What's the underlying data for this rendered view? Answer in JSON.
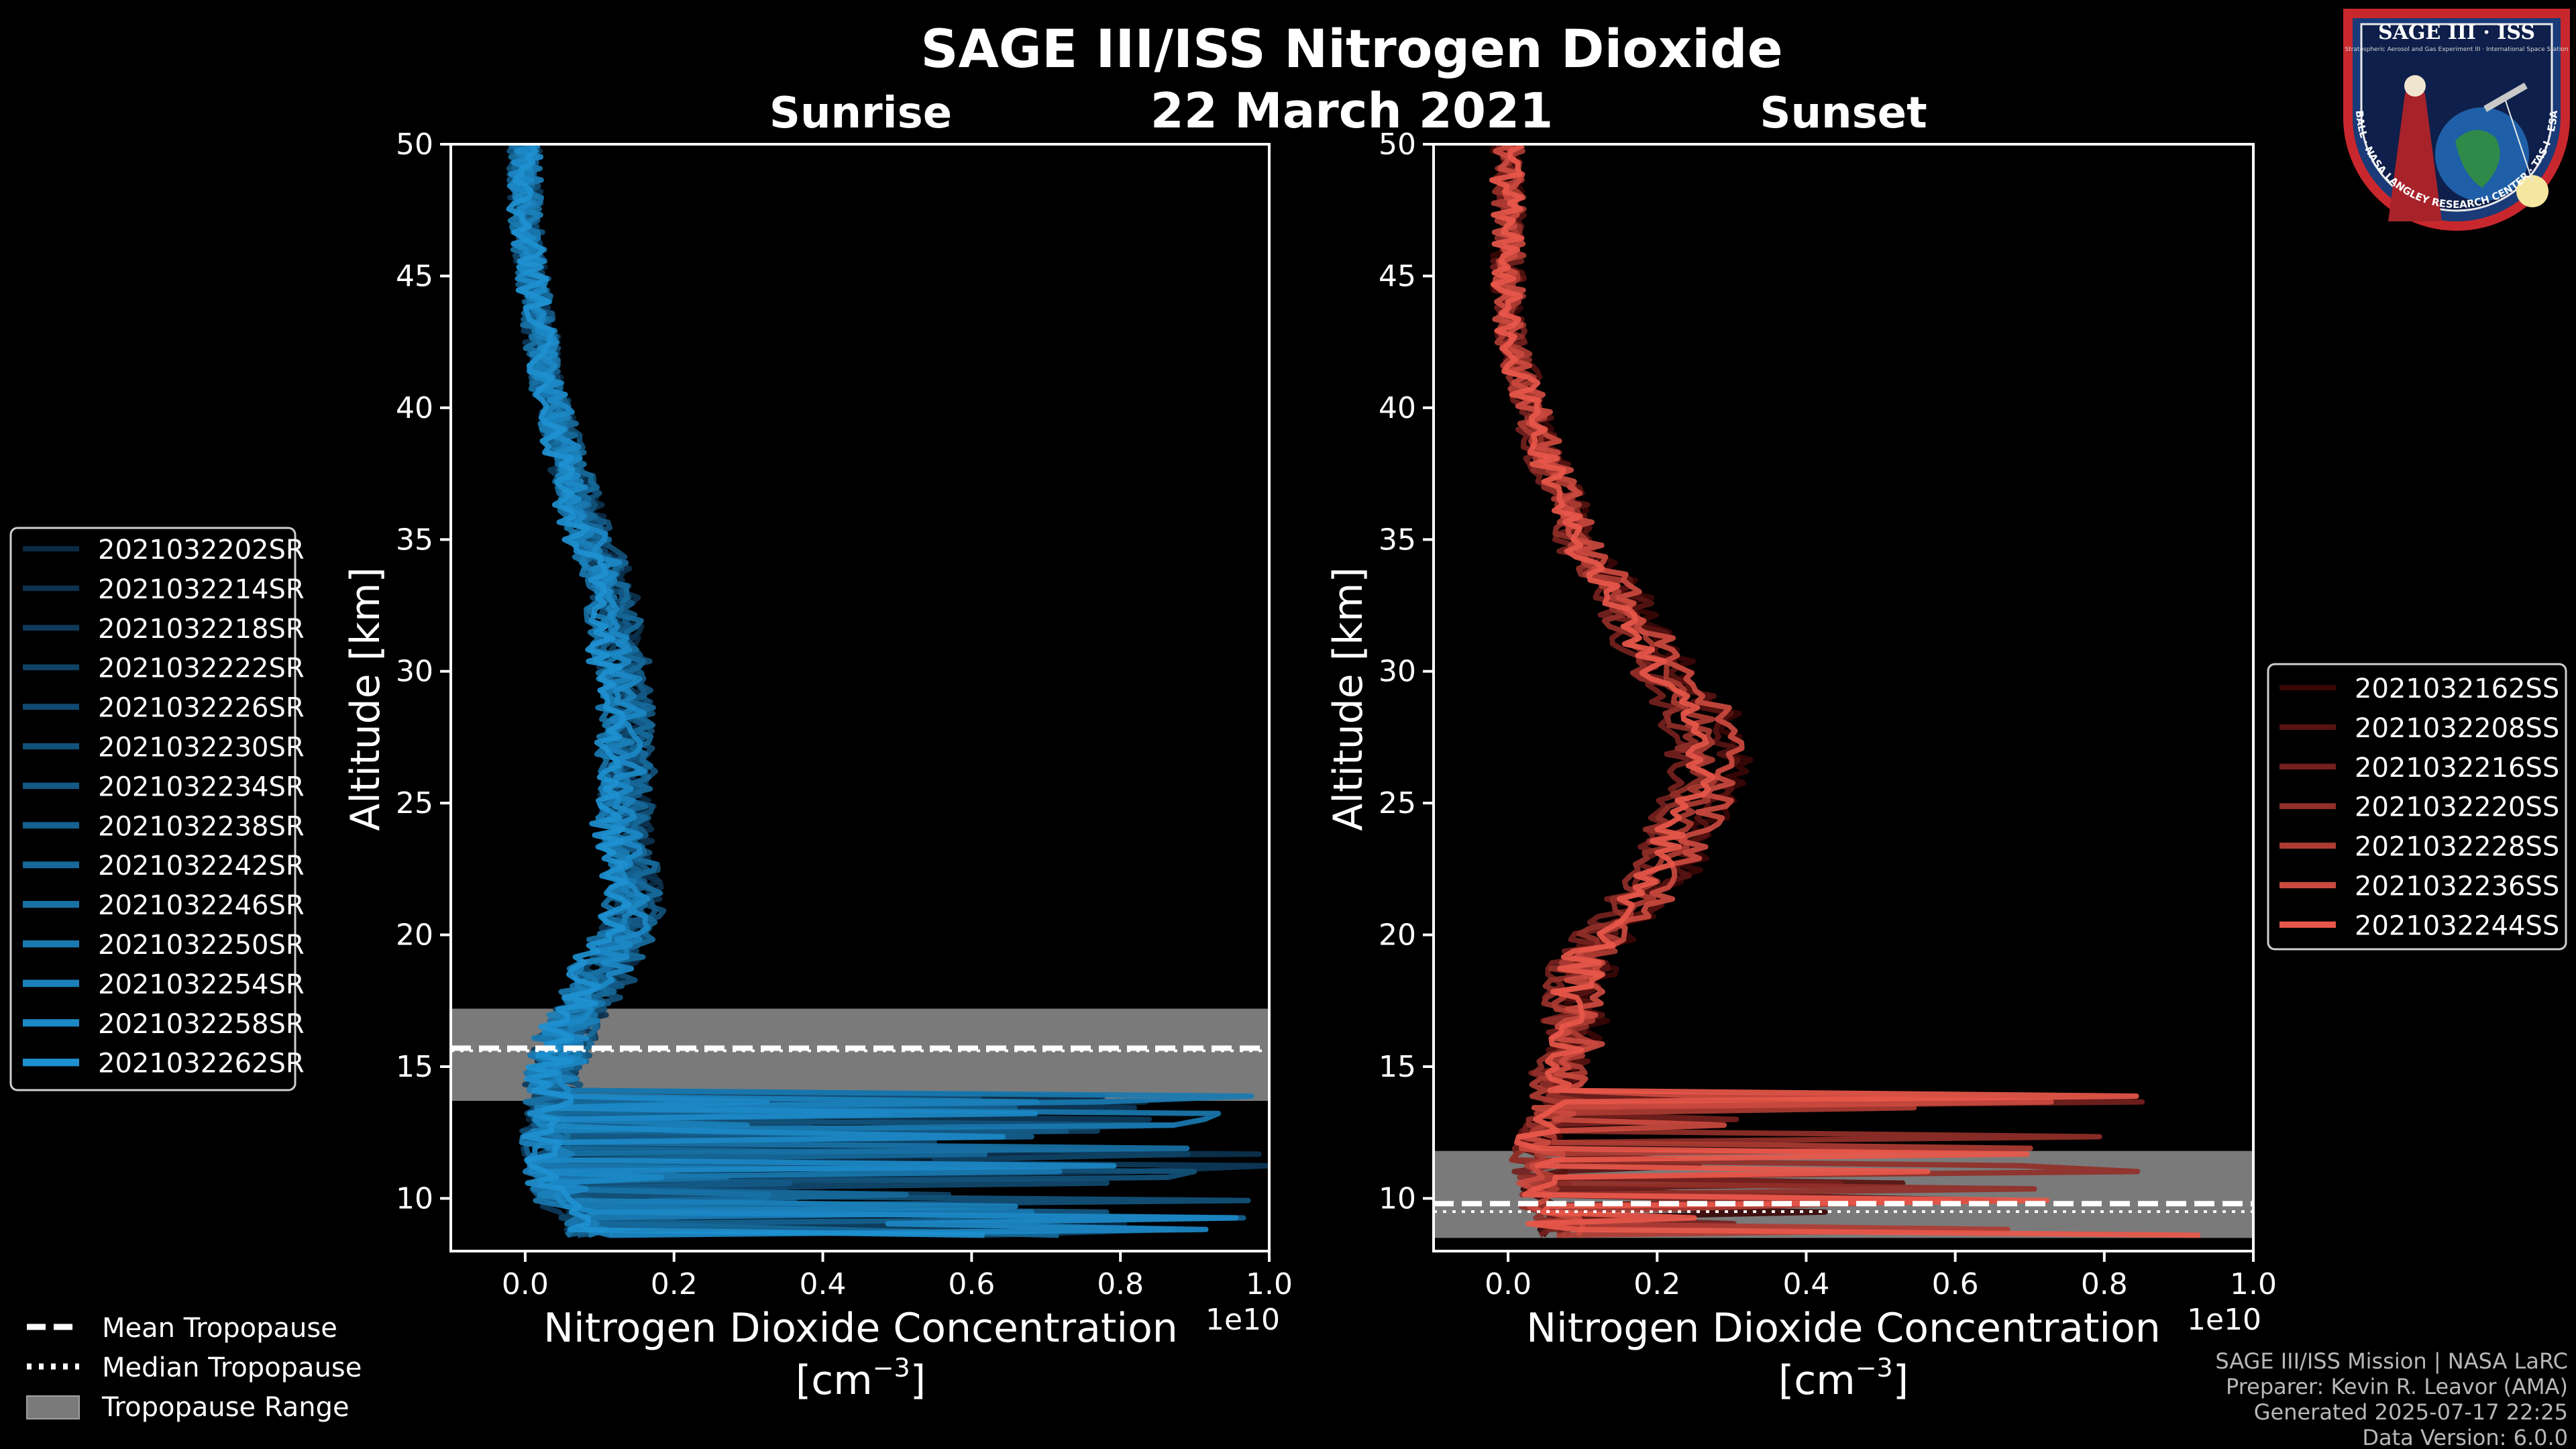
{
  "title": "SAGE III/ISS Nitrogen Dioxide",
  "date": "22 March 2021",
  "panels": {
    "sunrise": {
      "subtitle": "Sunrise"
    },
    "sunset": {
      "subtitle": "Sunset"
    }
  },
  "legend_sunrise": [
    "2021032202SR",
    "2021032214SR",
    "2021032218SR",
    "2021032222SR",
    "2021032226SR",
    "2021032230SR",
    "2021032234SR",
    "2021032238SR",
    "2021032242SR",
    "2021032246SR",
    "2021032250SR",
    "2021032254SR",
    "2021032258SR",
    "2021032262SR"
  ],
  "legend_sunset": [
    "2021032162SS",
    "2021032208SS",
    "2021032216SS",
    "2021032220SS",
    "2021032228SS",
    "2021032236SS",
    "2021032244SS"
  ],
  "tropo_legend": {
    "mean": "Mean Tropopause",
    "median": "Median Tropopause",
    "range": "Tropopause Range"
  },
  "axes": {
    "xlabel_line1": "Nitrogen Dioxide Concentration",
    "xlabel_line2": "[cm",
    "xlabel_exp": "−3",
    "xlabel_close": "]",
    "ylabel": "Altitude [km]",
    "offset_text": "1e10",
    "xticks": [
      "0.0",
      "0.2",
      "0.4",
      "0.6",
      "0.8",
      "1.0"
    ],
    "yticks": [
      "10",
      "15",
      "20",
      "25",
      "30",
      "35",
      "40",
      "45",
      "50"
    ]
  },
  "footer": {
    "line1": "SAGE III/ISS Mission | NASA LaRC",
    "line2": "Preparer: Kevin R. Leavor (AMA)",
    "line3": "Generated 2025-07-17 22:25",
    "line4": "Data Version: 6.0.0"
  },
  "logo": {
    "top_text": "SAGE III · ISS",
    "sub_text": "Stratospheric Aerosol and Gas Experiment III · International Space Station",
    "ring_text": "BALL · NASA LANGLEY RESEARCH CENTER · TAS-I · ESA"
  },
  "colors": {
    "sunrise": "#1e90d0",
    "sunset": "#e8574a",
    "tropo_band": "#7a7a7a"
  },
  "chart_data": [
    {
      "type": "line",
      "title": "Sunrise",
      "xlabel": "Nitrogen Dioxide Concentration [cm^-3]",
      "ylabel": "Altitude [km]",
      "x_scale": "1e10",
      "xlim": [
        -0.1,
        1.0
      ],
      "ylim": [
        8,
        50
      ],
      "orientation": "x=concentration, y=altitude",
      "median_profile": {
        "altitude_km": [
          9,
          10,
          11,
          12,
          13,
          14,
          15,
          16,
          17,
          18,
          19,
          20,
          21,
          22,
          23,
          24,
          25,
          26,
          27,
          28,
          29,
          30,
          31,
          32,
          33,
          34,
          35,
          36,
          37,
          38,
          39,
          40,
          41,
          42,
          43,
          44,
          45,
          46,
          47,
          48,
          49,
          50
        ],
        "no2_e10": [
          0.09,
          0.05,
          0.035,
          0.03,
          0.03,
          0.035,
          0.04,
          0.05,
          0.07,
          0.09,
          0.11,
          0.13,
          0.14,
          0.14,
          0.13,
          0.13,
          0.13,
          0.13,
          0.13,
          0.13,
          0.13,
          0.125,
          0.12,
          0.115,
          0.11,
          0.1,
          0.085,
          0.075,
          0.065,
          0.055,
          0.045,
          0.04,
          0.03,
          0.025,
          0.02,
          0.015,
          0.01,
          0.005,
          0.0,
          0.0,
          0.0,
          0.0
        ]
      },
      "series_count": 14,
      "tropopause": {
        "mean_km": 15.7,
        "median_km": 15.6,
        "range_km": [
          13.7,
          17.2
        ]
      }
    },
    {
      "type": "line",
      "title": "Sunset",
      "xlabel": "Nitrogen Dioxide Concentration [cm^-3]",
      "ylabel": "Altitude [km]",
      "x_scale": "1e10",
      "xlim": [
        -0.1,
        1.0
      ],
      "ylim": [
        8,
        50
      ],
      "orientation": "x=concentration, y=altitude",
      "median_profile": {
        "altitude_km": [
          9,
          10,
          11,
          12,
          13,
          14,
          15,
          16,
          17,
          18,
          19,
          20,
          21,
          22,
          23,
          24,
          25,
          26,
          27,
          28,
          29,
          30,
          31,
          32,
          33,
          34,
          35,
          36,
          37,
          38,
          39,
          40,
          41,
          42,
          43,
          44,
          45,
          46,
          47,
          48,
          49,
          50
        ],
        "no2_e10": [
          0.06,
          0.045,
          0.04,
          0.04,
          0.045,
          0.055,
          0.07,
          0.08,
          0.085,
          0.09,
          0.1,
          0.12,
          0.16,
          0.19,
          0.21,
          0.22,
          0.24,
          0.26,
          0.26,
          0.25,
          0.23,
          0.2,
          0.18,
          0.16,
          0.14,
          0.11,
          0.09,
          0.08,
          0.065,
          0.05,
          0.04,
          0.03,
          0.02,
          0.01,
          0.0,
          0.0,
          0.0,
          0.0,
          0.0,
          0.0,
          0.0,
          0.0
        ]
      },
      "series_count": 7,
      "tropopause": {
        "mean_km": 9.8,
        "median_km": 9.5,
        "range_km": [
          8.5,
          11.8
        ]
      }
    }
  ]
}
